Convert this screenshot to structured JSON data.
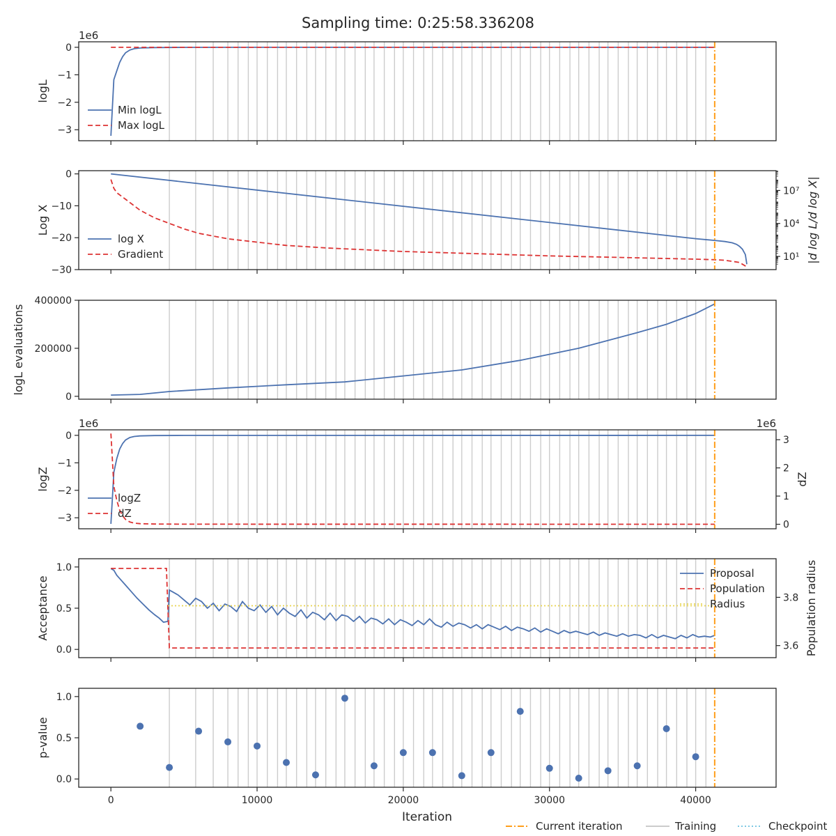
{
  "figure": {
    "title": "Sampling time: 0:25:58.336208",
    "xlabel": "Iteration",
    "xlim": [
      -2200,
      45500
    ],
    "xticks": [
      0,
      10000,
      20000,
      30000,
      40000
    ],
    "xticklabels": [
      "0",
      "10000",
      "20000",
      "30000",
      "40000"
    ],
    "current_iteration": 41300,
    "training_lines": [
      4000,
      5800,
      7000,
      8000,
      8700,
      9400,
      10000,
      10700,
      11400,
      12000,
      12700,
      13400,
      14000,
      14700,
      15400,
      16000,
      16700,
      17400,
      18000,
      18700,
      19400,
      20000,
      20700,
      21400,
      22000,
      22700,
      23400,
      24000,
      24700,
      25400,
      26000,
      26700,
      27400,
      28000,
      28700,
      29400,
      30000,
      30700,
      31400,
      32000,
      32700,
      33400,
      34000,
      34700,
      35400,
      36000,
      36700,
      37400,
      38000,
      38700,
      39400,
      40000,
      40700
    ],
    "bottom_legend": [
      {
        "label": "Current iteration",
        "color": "#ff9e1b",
        "style": "dashdot"
      },
      {
        "label": "Training",
        "color": "#cccccc",
        "style": "solid"
      },
      {
        "label": "Checkpoint",
        "color": "#7ec8e3",
        "style": "dotted"
      }
    ]
  },
  "chart_data": [
    {
      "type": "line",
      "name": "logL",
      "ylabel": "logL",
      "yscale_label": "1e6",
      "ylim": [
        -3.4,
        0.2
      ],
      "yticks": [
        0,
        -1,
        -2,
        -3
      ],
      "yticklabels": [
        "0",
        "−1",
        "−2",
        "−3"
      ],
      "legend": "lower-left",
      "series": [
        {
          "name": "Min logL",
          "color": "#4c72b0",
          "style": "solid",
          "x": [
            0,
            100,
            200,
            400,
            600,
            800,
            1000,
            1300,
            1600,
            2000,
            3000,
            5000,
            10000,
            20000,
            30000,
            41300
          ],
          "y": [
            -3.22,
            -2.2,
            -1.18,
            -0.86,
            -0.55,
            -0.34,
            -0.2,
            -0.1,
            -0.05,
            -0.025,
            -0.01,
            -0.004,
            -0.001,
            -0.0005,
            -0.0002,
            -0.0001
          ]
        },
        {
          "name": "Max logL",
          "color": "#dd3333",
          "style": "dashed",
          "x": [
            0,
            41300
          ],
          "y": [
            0,
            0
          ]
        }
      ]
    },
    {
      "type": "line",
      "name": "logX",
      "ylabel": "Log X",
      "ylim": [
        -30,
        1
      ],
      "yticks": [
        0,
        -10,
        -20,
        -30
      ],
      "yticklabels": [
        "0",
        "−10",
        "−20",
        "−30"
      ],
      "y2label": "|d log L/d log X|",
      "y2log": true,
      "y2lim": [
        -0.2,
        8.8
      ],
      "y2ticks": [
        1,
        4,
        7
      ],
      "y2ticklabels": [
        "10¹",
        "10⁴",
        "10⁷"
      ],
      "legend": "lower-left",
      "series": [
        {
          "name": "log X",
          "color": "#4c72b0",
          "style": "solid",
          "x": [
            0,
            40000,
            41300,
            42000,
            42500,
            42800,
            43000,
            43200,
            43400,
            43500
          ],
          "y": [
            0,
            -20.3,
            -20.85,
            -21.2,
            -21.6,
            -22.1,
            -22.7,
            -23.6,
            -25.3,
            -28.3
          ]
        },
        {
          "name": "Gradient",
          "color": "#dd3333",
          "style": "dashed",
          "axis": "right",
          "x": [
            0,
            200,
            400,
            1000,
            1500,
            2000,
            3000,
            4000,
            5000,
            6000,
            8000,
            10000,
            12000,
            15000,
            20000,
            25000,
            30000,
            35000,
            40000,
            41300,
            42000,
            43000,
            43500
          ],
          "y": [
            8.0,
            7.2,
            6.8,
            6.2,
            5.7,
            5.2,
            4.5,
            4.0,
            3.5,
            3.1,
            2.6,
            2.3,
            2.0,
            1.75,
            1.45,
            1.25,
            1.05,
            0.9,
            0.75,
            0.7,
            0.65,
            0.45,
            0.05
          ]
        }
      ]
    },
    {
      "type": "line",
      "name": "evaluations",
      "ylabel": "logL evaluations",
      "ylim": [
        -12000,
        400000
      ],
      "yticks": [
        0,
        200000,
        400000
      ],
      "yticklabels": [
        "0",
        "200000",
        "400000"
      ],
      "legend": "none",
      "series": [
        {
          "name": "",
          "color": "#4c72b0",
          "style": "solid",
          "x": [
            0,
            2000,
            4000,
            8000,
            12000,
            16000,
            20000,
            24000,
            28000,
            32000,
            36000,
            38000,
            40000,
            41300
          ],
          "y": [
            5000,
            8000,
            20000,
            35000,
            48000,
            60000,
            85000,
            110000,
            150000,
            200000,
            265000,
            300000,
            345000,
            385000
          ]
        }
      ]
    },
    {
      "type": "line",
      "name": "logZ",
      "ylabel": "logZ",
      "yscale_label": "1e6",
      "ylim": [
        -3.4,
        0.2
      ],
      "yticks": [
        0,
        -1,
        -2,
        -3
      ],
      "yticklabels": [
        "0",
        "−1",
        "−2",
        "−3"
      ],
      "y2label": "dZ",
      "y2scale_label": "1e6",
      "y2lim": [
        -0.16,
        3.35
      ],
      "y2ticks": [
        0,
        1,
        2,
        3
      ],
      "y2ticklabels": [
        "0",
        "1",
        "2",
        "3"
      ],
      "legend": "lower-left",
      "series": [
        {
          "name": "logZ",
          "color": "#4c72b0",
          "style": "solid",
          "x": [
            0,
            100,
            200,
            400,
            600,
            800,
            1000,
            1300,
            1600,
            2000,
            3000,
            5000,
            41300
          ],
          "y": [
            -3.22,
            -2.3,
            -1.35,
            -0.85,
            -0.5,
            -0.3,
            -0.17,
            -0.08,
            -0.04,
            -0.02,
            -0.008,
            -0.003,
            -0.001
          ]
        },
        {
          "name": "dZ",
          "color": "#dd3333",
          "style": "dashed",
          "axis": "right",
          "x": [
            0,
            100,
            200,
            400,
            600,
            800,
            1000,
            1300,
            1600,
            2000,
            3000,
            5000,
            41300
          ],
          "y": [
            3.22,
            2.3,
            1.35,
            0.85,
            0.5,
            0.3,
            0.17,
            0.08,
            0.04,
            0.02,
            0.008,
            0.003,
            0.001
          ]
        }
      ]
    },
    {
      "type": "line",
      "name": "acceptance",
      "ylabel": "Acceptance",
      "ylim": [
        -0.1,
        1.1
      ],
      "yticks": [
        0,
        0.5,
        1
      ],
      "yticklabels": [
        "0.0",
        "0.5",
        "1.0"
      ],
      "y2label": "Population radius",
      "y2lim": [
        3.55,
        3.96
      ],
      "y2ticks": [
        3.6,
        3.8
      ],
      "y2ticklabels": [
        "3.6",
        "3.8"
      ],
      "legend": "upper-right",
      "series": [
        {
          "name": "Proposal",
          "color": "#4c72b0",
          "style": "solid",
          "x": [
            0,
            200,
            400,
            700,
            1000,
            1400,
            1800,
            2200,
            2600,
            3000,
            3300,
            3600,
            3900,
            4000,
            4200,
            4600,
            5000,
            5400,
            5800,
            6200,
            6600,
            7000,
            7400,
            7800,
            8200,
            8600,
            9000,
            9400,
            9800,
            10200,
            10600,
            11000,
            11400,
            11800,
            12200,
            12600,
            13000,
            13400,
            13800,
            14200,
            14600,
            15000,
            15400,
            15800,
            16200,
            16600,
            17000,
            17400,
            17800,
            18200,
            18600,
            19000,
            19400,
            19800,
            20200,
            20600,
            21000,
            21400,
            21800,
            22200,
            22600,
            23000,
            23400,
            23800,
            24200,
            24600,
            25000,
            25400,
            25800,
            26200,
            26600,
            27000,
            27400,
            27800,
            28200,
            28600,
            29000,
            29400,
            29800,
            30200,
            30600,
            31000,
            31400,
            31800,
            32200,
            32600,
            33000,
            33400,
            33800,
            34200,
            34600,
            35000,
            35400,
            35800,
            36200,
            36600,
            37000,
            37400,
            37800,
            38200,
            38600,
            39000,
            39400,
            39800,
            40200,
            40600,
            41000,
            41300
          ],
          "y": [
            0.98,
            0.96,
            0.9,
            0.84,
            0.78,
            0.7,
            0.62,
            0.55,
            0.48,
            0.42,
            0.38,
            0.33,
            0.34,
            0.72,
            0.7,
            0.66,
            0.6,
            0.54,
            0.62,
            0.58,
            0.5,
            0.56,
            0.47,
            0.55,
            0.52,
            0.46,
            0.58,
            0.5,
            0.47,
            0.54,
            0.45,
            0.52,
            0.42,
            0.5,
            0.44,
            0.4,
            0.48,
            0.38,
            0.45,
            0.42,
            0.36,
            0.44,
            0.35,
            0.42,
            0.4,
            0.34,
            0.4,
            0.32,
            0.38,
            0.36,
            0.31,
            0.37,
            0.3,
            0.36,
            0.33,
            0.29,
            0.35,
            0.3,
            0.37,
            0.3,
            0.27,
            0.33,
            0.28,
            0.32,
            0.3,
            0.26,
            0.3,
            0.25,
            0.3,
            0.27,
            0.24,
            0.28,
            0.23,
            0.27,
            0.25,
            0.22,
            0.26,
            0.21,
            0.25,
            0.22,
            0.19,
            0.23,
            0.2,
            0.22,
            0.2,
            0.18,
            0.21,
            0.17,
            0.2,
            0.18,
            0.16,
            0.19,
            0.16,
            0.18,
            0.17,
            0.14,
            0.18,
            0.14,
            0.17,
            0.15,
            0.13,
            0.17,
            0.14,
            0.18,
            0.15,
            0.16,
            0.15,
            0.17
          ]
        },
        {
          "name": "Population",
          "color": "#dd3333",
          "style": "dashed",
          "axis": "right",
          "x": [
            0,
            3800,
            4000,
            4100,
            41300
          ],
          "y": [
            3.92,
            3.92,
            3.59,
            3.59,
            3.59
          ]
        },
        {
          "name": "Radius",
          "color": "#e8d44d",
          "style": "dotted",
          "axis": "right",
          "x": [
            3900,
            41300
          ],
          "y": [
            3.765,
            3.765
          ]
        }
      ]
    },
    {
      "type": "scatter",
      "name": "pvalue",
      "ylabel": "p-value",
      "ylim": [
        -0.1,
        1.1
      ],
      "yticks": [
        0,
        0.5,
        1
      ],
      "yticklabels": [
        "0.0",
        "0.5",
        "1.0"
      ],
      "legend": "none",
      "series": [
        {
          "name": "",
          "color": "#4c72b0",
          "x": [
            2000,
            4000,
            6000,
            8000,
            10000,
            12000,
            14000,
            16000,
            18000,
            20000,
            22000,
            24000,
            26000,
            28000,
            30000,
            32000,
            34000,
            36000,
            38000,
            40000
          ],
          "y": [
            0.64,
            0.14,
            0.58,
            0.45,
            0.4,
            0.2,
            0.05,
            0.98,
            0.16,
            0.32,
            0.32,
            0.04,
            0.32,
            0.82,
            0.13,
            0.01,
            0.1,
            0.16,
            0.61,
            0.27
          ]
        }
      ]
    }
  ]
}
